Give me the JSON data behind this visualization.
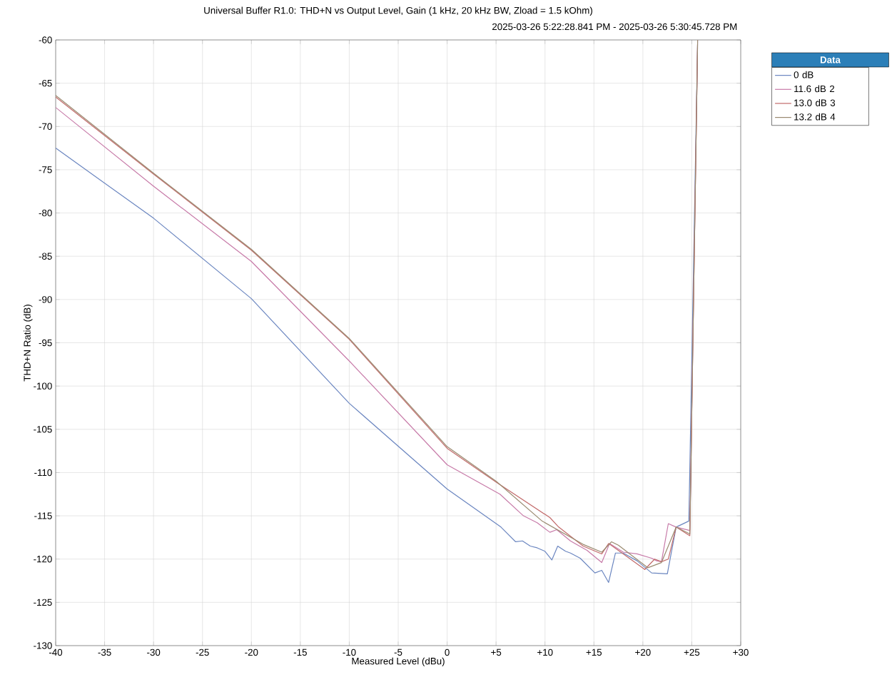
{
  "chart_data": {
    "type": "line",
    "title": "Universal Buffer R1.0: THD+N vs Output Level, Gain (1 kHz, 20 kHz BW, Zload = 1.5 kOhm)",
    "subtitle": "2025-03-26 5:22:28.841 PM - 2025-03-26 5:30:45.728 PM",
    "xlabel": "Measured Level (dBu)",
    "ylabel": "THD+N Ratio (dB)",
    "legend_title": "Data",
    "xlim": [
      -40,
      30
    ],
    "ylim": [
      -130,
      -60
    ],
    "xticks": [
      -40,
      -35,
      -30,
      -25,
      -20,
      -15,
      -10,
      -5,
      0,
      {
        "value": 5,
        "label": "+5"
      },
      {
        "value": 10,
        "label": "+10"
      },
      {
        "value": 15,
        "label": "+15"
      },
      {
        "value": 20,
        "label": "+20"
      },
      {
        "value": 25,
        "label": "+25"
      },
      {
        "value": 30,
        "label": "+30"
      }
    ],
    "yticks": [
      -130,
      -125,
      -120,
      -115,
      -110,
      -105,
      -100,
      -95,
      -90,
      -85,
      -80,
      -75,
      -70,
      -65,
      -60
    ],
    "grid": true,
    "legend": "top right",
    "marker": "none",
    "line_style": "solid",
    "series": [
      {
        "name": "0 dB",
        "color": "#6b86c0",
        "x": [
          -40,
          -30,
          -20,
          -10,
          0,
          5.5,
          7.0,
          7.7,
          8.5,
          9.2,
          10,
          10.7,
          11.3,
          12.1,
          12.6,
          13.6,
          15.1,
          15.8,
          16.5,
          17.2,
          18,
          19.4,
          20.9,
          22.5,
          23.4,
          24.7,
          25.6
        ],
        "values": [
          -72.5,
          -80.6,
          -89.9,
          -102.0,
          -111.9,
          -116.3,
          -118,
          -117.9,
          -118.5,
          -118.7,
          -119.1,
          -120.1,
          -118.5,
          -119.1,
          -119.3,
          -119.9,
          -121.6,
          -121.3,
          -122.7,
          -119.3,
          -119.3,
          -120.2,
          -121.6,
          -121.7,
          -116.3,
          -115.6,
          -60
        ]
      },
      {
        "name": "11.6 dB 2",
        "color": "#c77aa8",
        "x": [
          -40,
          -30,
          -20,
          -10,
          0,
          5.4,
          7.8,
          9.2,
          10.5,
          11.2,
          12.6,
          14.3,
          15.8,
          16.6,
          18,
          19.4,
          20.9,
          21.4,
          21.9,
          22.6,
          23.4,
          24.8,
          25.6
        ],
        "values": [
          -67.8,
          -76.9,
          -85.6,
          -97.1,
          -109.1,
          -112.5,
          -115,
          -115.8,
          -116.9,
          -116.6,
          -117.9,
          -119,
          -120.4,
          -118.2,
          -119.2,
          -119.4,
          -119.9,
          -120.2,
          -120.3,
          -115.9,
          -116.3,
          -116.7,
          -60
        ]
      },
      {
        "name": "13.0 dB 3",
        "color": "#c26a6a",
        "x": [
          -40,
          -30,
          -20,
          -10,
          0,
          5,
          10.5,
          11.4,
          13.9,
          15.8,
          16.5,
          18,
          20.2,
          21.2,
          21.9,
          22.6,
          23.4,
          24.8,
          25.6
        ],
        "values": [
          -66.6,
          -75.5,
          -84.3,
          -94.6,
          -107.2,
          -111.1,
          -115.2,
          -116.3,
          -118.5,
          -119.4,
          -118.2,
          -119.4,
          -121.2,
          -120,
          -120.3,
          -120,
          -116.3,
          -117.3,
          -60
        ]
      },
      {
        "name": "13.2 dB 4",
        "color": "#9a8a70",
        "x": [
          -40,
          -30,
          -20,
          -10,
          0,
          5,
          9.7,
          13.9,
          15.8,
          16.8,
          17.5,
          20.5,
          21.9,
          23.4,
          24.8,
          25.6
        ],
        "values": [
          -66.4,
          -75.4,
          -84.2,
          -94.5,
          -107.0,
          -111.0,
          -115.6,
          -118.3,
          -119.2,
          -118,
          -118.4,
          -121,
          -120.4,
          -116.3,
          -117.1,
          -60
        ]
      }
    ]
  }
}
